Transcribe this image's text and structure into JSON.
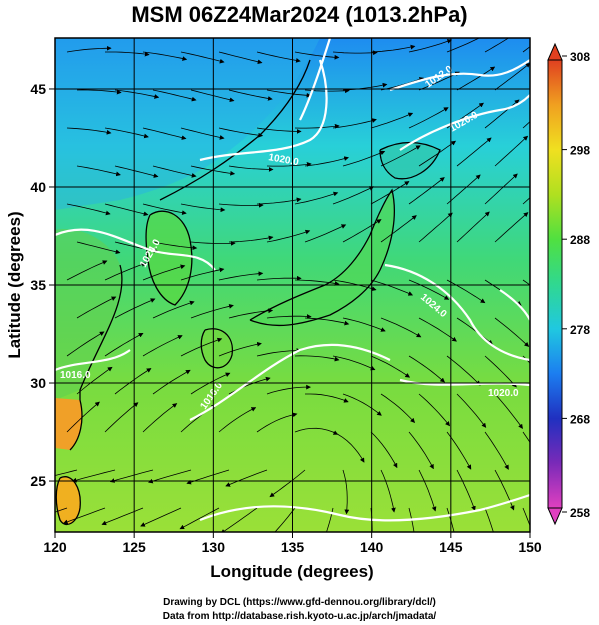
{
  "title": "MSM 06Z24Mar2024 (1013.2hPa)",
  "axes": {
    "xlabel": "Longitude (degrees)",
    "ylabel": "Latitude  (degrees)",
    "x_ticks": [
      "120",
      "125",
      "130",
      "135",
      "140",
      "145",
      "150"
    ],
    "y_ticks": [
      "45",
      "40",
      "35",
      "30",
      "25"
    ],
    "x_range": [
      120,
      150
    ],
    "y_range": [
      22.4,
      47.6
    ]
  },
  "colorbar": {
    "ticks": [
      "308",
      "298",
      "288",
      "278",
      "268",
      "258"
    ],
    "range": [
      258,
      308
    ],
    "colors": [
      "#e040c0",
      "#7a2ab8",
      "#2030c0",
      "#1c7ef0",
      "#20c8e0",
      "#30d890",
      "#50e040",
      "#b0e020",
      "#f0e020",
      "#f0a020",
      "#e04020"
    ]
  },
  "contour_labels": [
    "1012.0",
    "1020.0",
    "1020.0",
    "1024.0",
    "1024.0",
    "1016.0",
    "1016.0",
    "1020.0"
  ],
  "credits": {
    "line1": "Drawing by DCL (https://www.gfd-dennou.org/library/dcl/)",
    "line2": "Data from http://database.rish.kyoto-u.ac.jp/arch/jmadata/"
  }
}
